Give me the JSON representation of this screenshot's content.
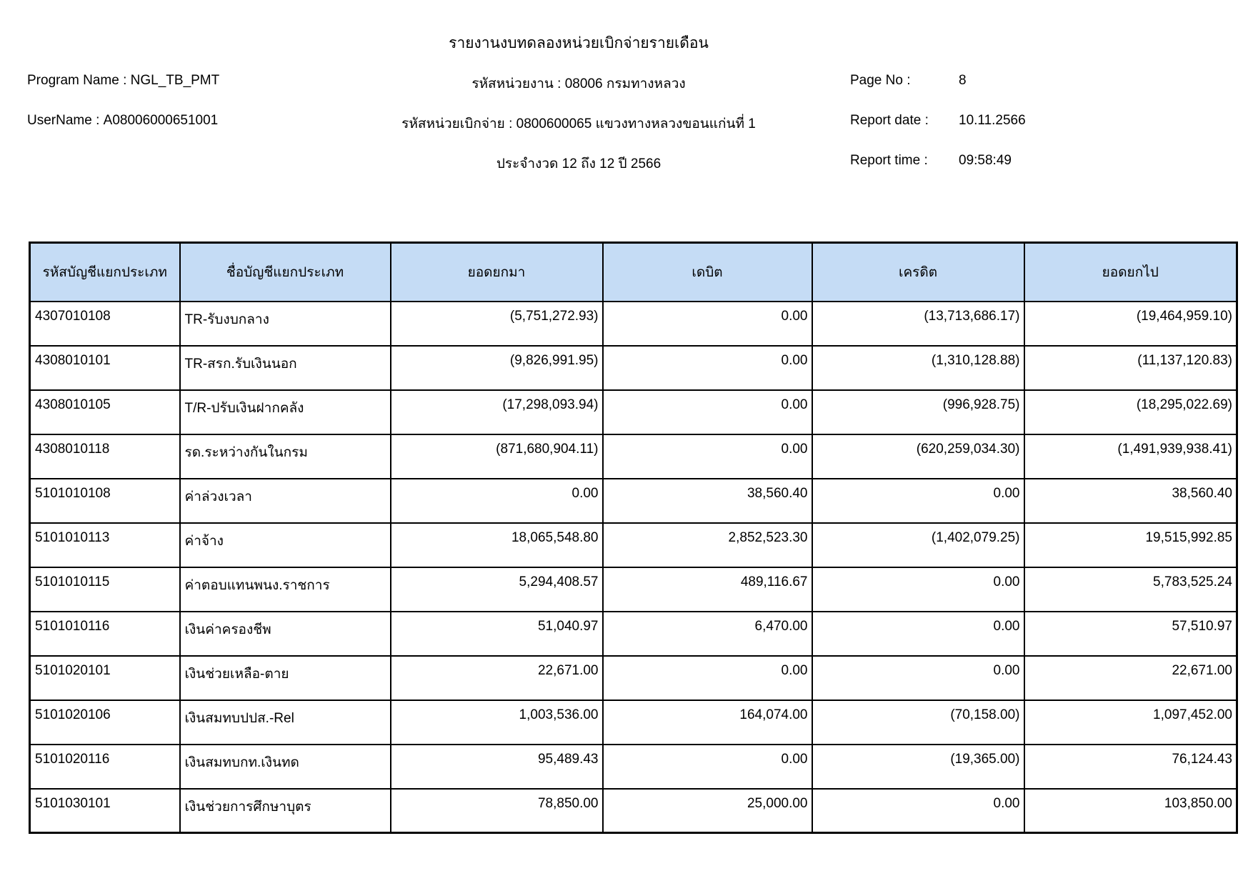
{
  "report": {
    "title": "รายงานงบทดลองหน่วยเบิกจ่ายรายเดือน",
    "program_name_label": "Program Name :",
    "program_name": "NGL_TB_PMT",
    "username_label": "UserName :",
    "username": "A08006000651001",
    "agency_line": "รหัสหน่วยงาน : 08006 กรมทางหลวง",
    "disbursement_unit_line": "รหัสหน่วยเบิกจ่าย : 0800600065 แขวงทางหลวงขอนแก่นที่ 1",
    "period_line": "ประจำงวด 12 ถึง 12 ปี 2566",
    "page_no_label": "Page No :",
    "page_no": "8",
    "report_date_label": "Report date :",
    "report_date": "10.11.2566",
    "report_time_label": "Report time :",
    "report_time": "09:58:49"
  },
  "table": {
    "header_bg": "#C5DCF5",
    "columns": [
      "รหัสบัญชีแยกประเภท",
      "ชื่อบัญชีแยกประเภท",
      "ยอดยกมา",
      "เดบิต",
      "เครดิต",
      "ยอดยกไป"
    ],
    "rows": [
      [
        "4307010108",
        "TR-รับงบกลาง",
        "(5,751,272.93)",
        "0.00",
        "(13,713,686.17)",
        "(19,464,959.10)"
      ],
      [
        "4308010101",
        "TR-สรก.รับเงินนอก",
        "(9,826,991.95)",
        "0.00",
        "(1,310,128.88)",
        "(11,137,120.83)"
      ],
      [
        "4308010105",
        "T/R-ปรับเงินฝากคลัง",
        "(17,298,093.94)",
        "0.00",
        "(996,928.75)",
        "(18,295,022.69)"
      ],
      [
        "4308010118",
        "รด.ระหว่างกันในกรม",
        "(871,680,904.11)",
        "0.00",
        "(620,259,034.30)",
        "(1,491,939,938.41)"
      ],
      [
        "5101010108",
        "ค่าล่วงเวลา",
        "0.00",
        "38,560.40",
        "0.00",
        "38,560.40"
      ],
      [
        "5101010113",
        "ค่าจ้าง",
        "18,065,548.80",
        "2,852,523.30",
        "(1,402,079.25)",
        "19,515,992.85"
      ],
      [
        "5101010115",
        "ค่าตอบแทนพนง.ราชการ",
        "5,294,408.57",
        "489,116.67",
        "0.00",
        "5,783,525.24"
      ],
      [
        "5101010116",
        "เงินค่าครองชีพ",
        "51,040.97",
        "6,470.00",
        "0.00",
        "57,510.97"
      ],
      [
        "5101020101",
        "เงินช่วยเหลือ-ตาย",
        "22,671.00",
        "0.00",
        "0.00",
        "22,671.00"
      ],
      [
        "5101020106",
        "เงินสมทบปปส.-Rel",
        "1,003,536.00",
        "164,074.00",
        "(70,158.00)",
        "1,097,452.00"
      ],
      [
        "5101020116",
        "เงินสมทบกท.เงินทด",
        "95,489.43",
        "0.00",
        "(19,365.00)",
        "76,124.43"
      ],
      [
        "5101030101",
        "เงินช่วยการศึกษาบุตร",
        "78,850.00",
        "25,000.00",
        "0.00",
        "103,850.00"
      ]
    ],
    "cell_names": [
      "account-code-cell",
      "account-name-cell",
      "balance-brought-forward-cell",
      "debit-cell",
      "credit-cell",
      "balance-carried-forward-cell"
    ]
  }
}
